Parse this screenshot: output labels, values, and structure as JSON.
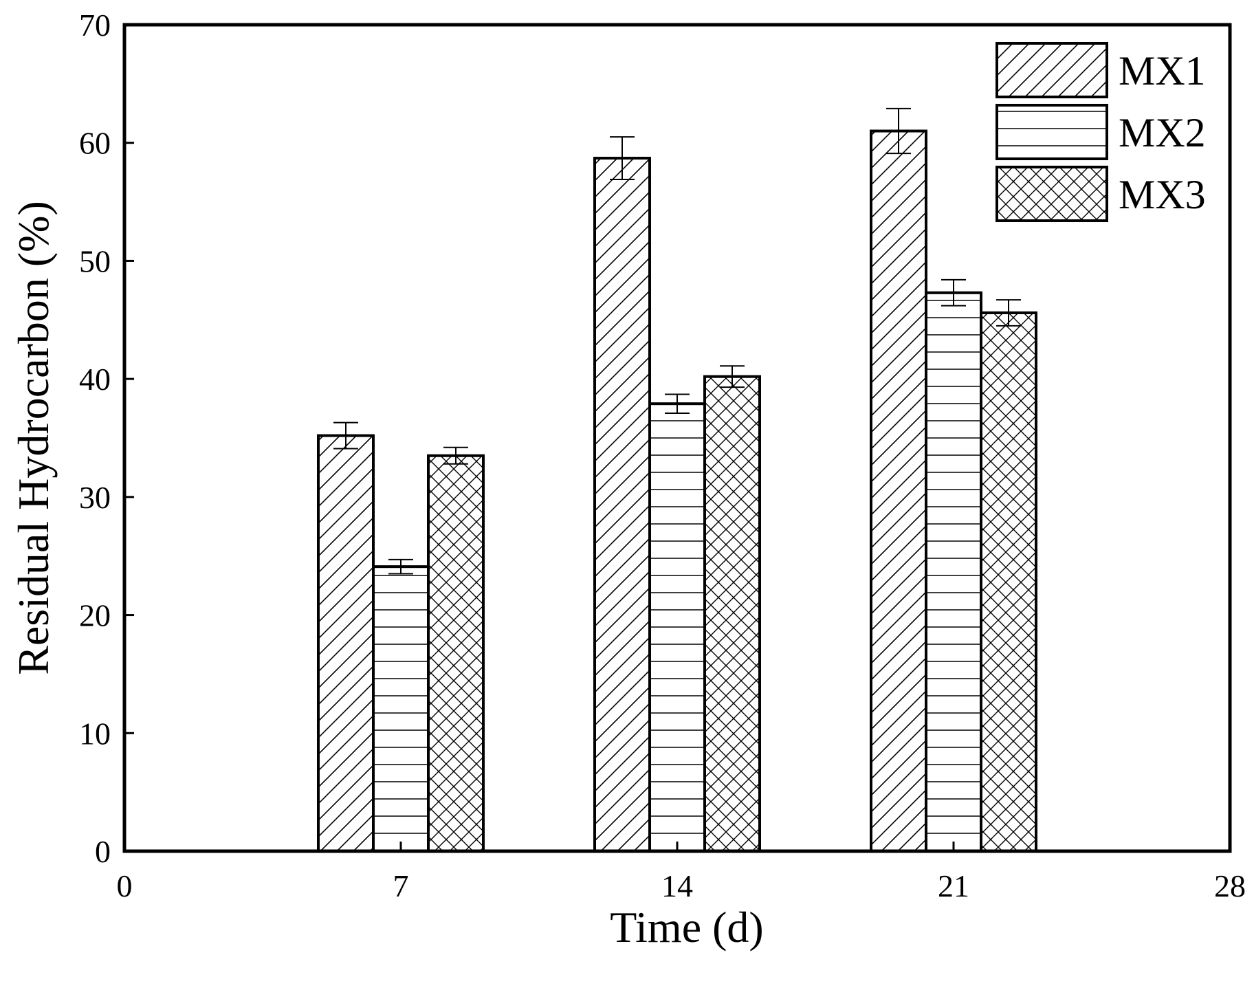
{
  "chart_data": {
    "type": "bar",
    "xlabel": "Time (d)",
    "ylabel": "Residual Hydrocarbon (%)",
    "xlim": [
      0,
      28
    ],
    "ylim": [
      0,
      70
    ],
    "x_ticks": [
      "0",
      "7",
      "14",
      "21",
      "28"
    ],
    "y_ticks": [
      "0",
      "10",
      "20",
      "30",
      "40",
      "50",
      "60",
      "70"
    ],
    "categories": [
      7,
      14,
      21
    ],
    "series": [
      {
        "name": "MX1",
        "values": [
          35.2,
          58.7,
          61.0
        ],
        "errors": [
          1.1,
          1.8,
          1.9
        ],
        "pattern": "diagonal"
      },
      {
        "name": "MX2",
        "values": [
          24.1,
          37.9,
          47.3
        ],
        "errors": [
          0.6,
          0.8,
          1.1
        ],
        "pattern": "horizontal"
      },
      {
        "name": "MX3",
        "values": [
          33.5,
          40.2,
          45.6
        ],
        "errors": [
          0.7,
          0.9,
          1.1
        ],
        "pattern": "crosshatch"
      }
    ],
    "legend_position": "top-right",
    "grid": false
  }
}
